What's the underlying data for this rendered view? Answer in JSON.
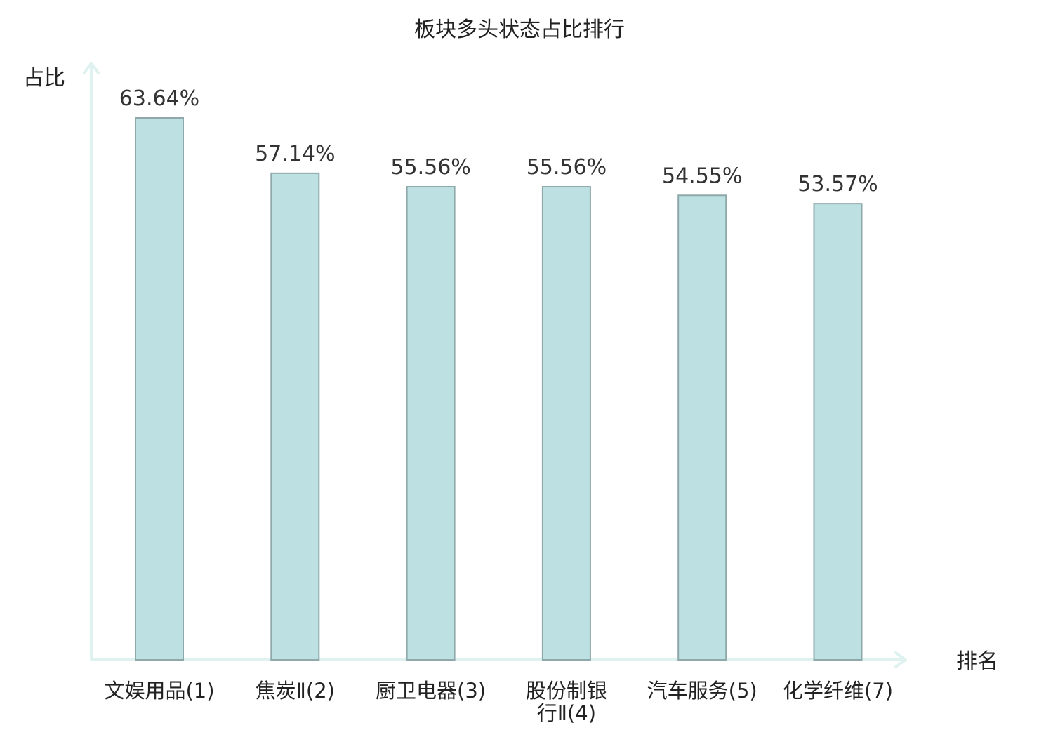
{
  "chart_data": {
    "type": "bar",
    "title": "板块多头状态占比排行",
    "ylabel": "占比",
    "xlabel": "排名",
    "categories": [
      [
        "文娱用品(1)"
      ],
      [
        "焦炭Ⅱ(2)"
      ],
      [
        "厨卫电器(3)"
      ],
      [
        "股份制银",
        "行Ⅱ(4)"
      ],
      [
        "汽车服务(5)"
      ],
      [
        "化学纤维(7)"
      ]
    ],
    "values": [
      63.64,
      57.14,
      55.56,
      55.56,
      54.55,
      53.57
    ],
    "value_labels": [
      "63.64%",
      "57.14%",
      "55.56%",
      "55.56%",
      "54.55%",
      "53.57%"
    ],
    "highlight_index": 5,
    "ylim": [
      0,
      70
    ],
    "grid": false,
    "legend": "none"
  },
  "colors": {
    "bar_fill": "#bde0e3",
    "bar_stroke": "#8fa8aa",
    "axis": "#dff2ef",
    "text": "#222222",
    "highlight": "#e01010"
  }
}
